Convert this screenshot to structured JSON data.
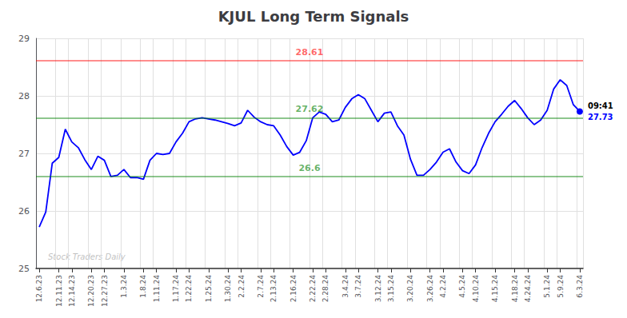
{
  "chart_data": {
    "type": "line",
    "title": "KJUL Long Term Signals",
    "categories": [
      "12.6.23",
      null,
      null,
      "12.11.23",
      null,
      "12.14.23",
      null,
      null,
      "12.20.23",
      null,
      "12.27.23",
      null,
      null,
      "1.3.24",
      null,
      null,
      "1.8.24",
      null,
      "1.11.24",
      null,
      null,
      "1.17.24",
      null,
      "1.22.24",
      null,
      null,
      "1.25.24",
      null,
      null,
      "1.30.24",
      null,
      "2.2.24",
      null,
      null,
      "2.7.24",
      null,
      "2.13.24",
      null,
      null,
      "2.16.24",
      null,
      null,
      "2.22.24",
      null,
      "2.28.24",
      null,
      null,
      "3.4.24",
      null,
      "3.7.24",
      null,
      null,
      "3.12.24",
      null,
      "3.15.24",
      null,
      null,
      "3.20.24",
      null,
      null,
      "3.26.24",
      null,
      "4.2.24",
      null,
      null,
      "4.5.24",
      null,
      "4.10.24",
      null,
      null,
      "4.15.24",
      null,
      null,
      "4.18.24",
      null,
      "4.24.24",
      null,
      null,
      "5.1.24",
      null,
      "5.9.24",
      null,
      null,
      "6.3.24"
    ],
    "series": [
      {
        "color": "blue",
        "values": [
          25.72,
          25.98,
          26.83,
          26.93,
          27.42,
          27.2,
          27.1,
          26.89,
          26.72,
          26.95,
          26.88,
          26.6,
          26.62,
          26.72,
          26.58,
          26.58,
          26.55,
          26.88,
          27.0,
          26.98,
          27.0,
          27.2,
          27.35,
          27.55,
          27.6,
          27.62,
          27.6,
          27.58,
          27.55,
          27.52,
          27.48,
          27.53,
          27.75,
          27.63,
          27.55,
          27.5,
          27.48,
          27.32,
          27.12,
          26.97,
          27.02,
          27.22,
          27.62,
          27.72,
          27.68,
          27.55,
          27.58,
          27.8,
          27.95,
          28.02,
          27.95,
          27.75,
          27.55,
          27.7,
          27.72,
          27.48,
          27.32,
          26.9,
          26.62,
          26.62,
          26.72,
          26.85,
          27.02,
          27.08,
          26.85,
          26.7,
          26.65,
          26.8,
          27.1,
          27.35,
          27.55,
          27.68,
          27.82,
          27.92,
          27.78,
          27.62,
          27.5,
          27.58,
          27.75,
          28.12,
          28.28,
          28.18,
          27.85,
          27.73
        ]
      }
    ],
    "hlines": [
      {
        "value": 28.61,
        "label": "28.61",
        "color": "red"
      },
      {
        "value": 27.62,
        "label": "27.62",
        "color": "green"
      },
      {
        "value": 26.6,
        "label": "26.6",
        "color": "green"
      }
    ],
    "current_label": "09:41",
    "current_value": 27.73,
    "watermark": "Stock Traders Daily",
    "ylim": [
      25.0,
      29.0
    ],
    "yticks": [
      25,
      26,
      27,
      28,
      29
    ],
    "grid": true
  }
}
